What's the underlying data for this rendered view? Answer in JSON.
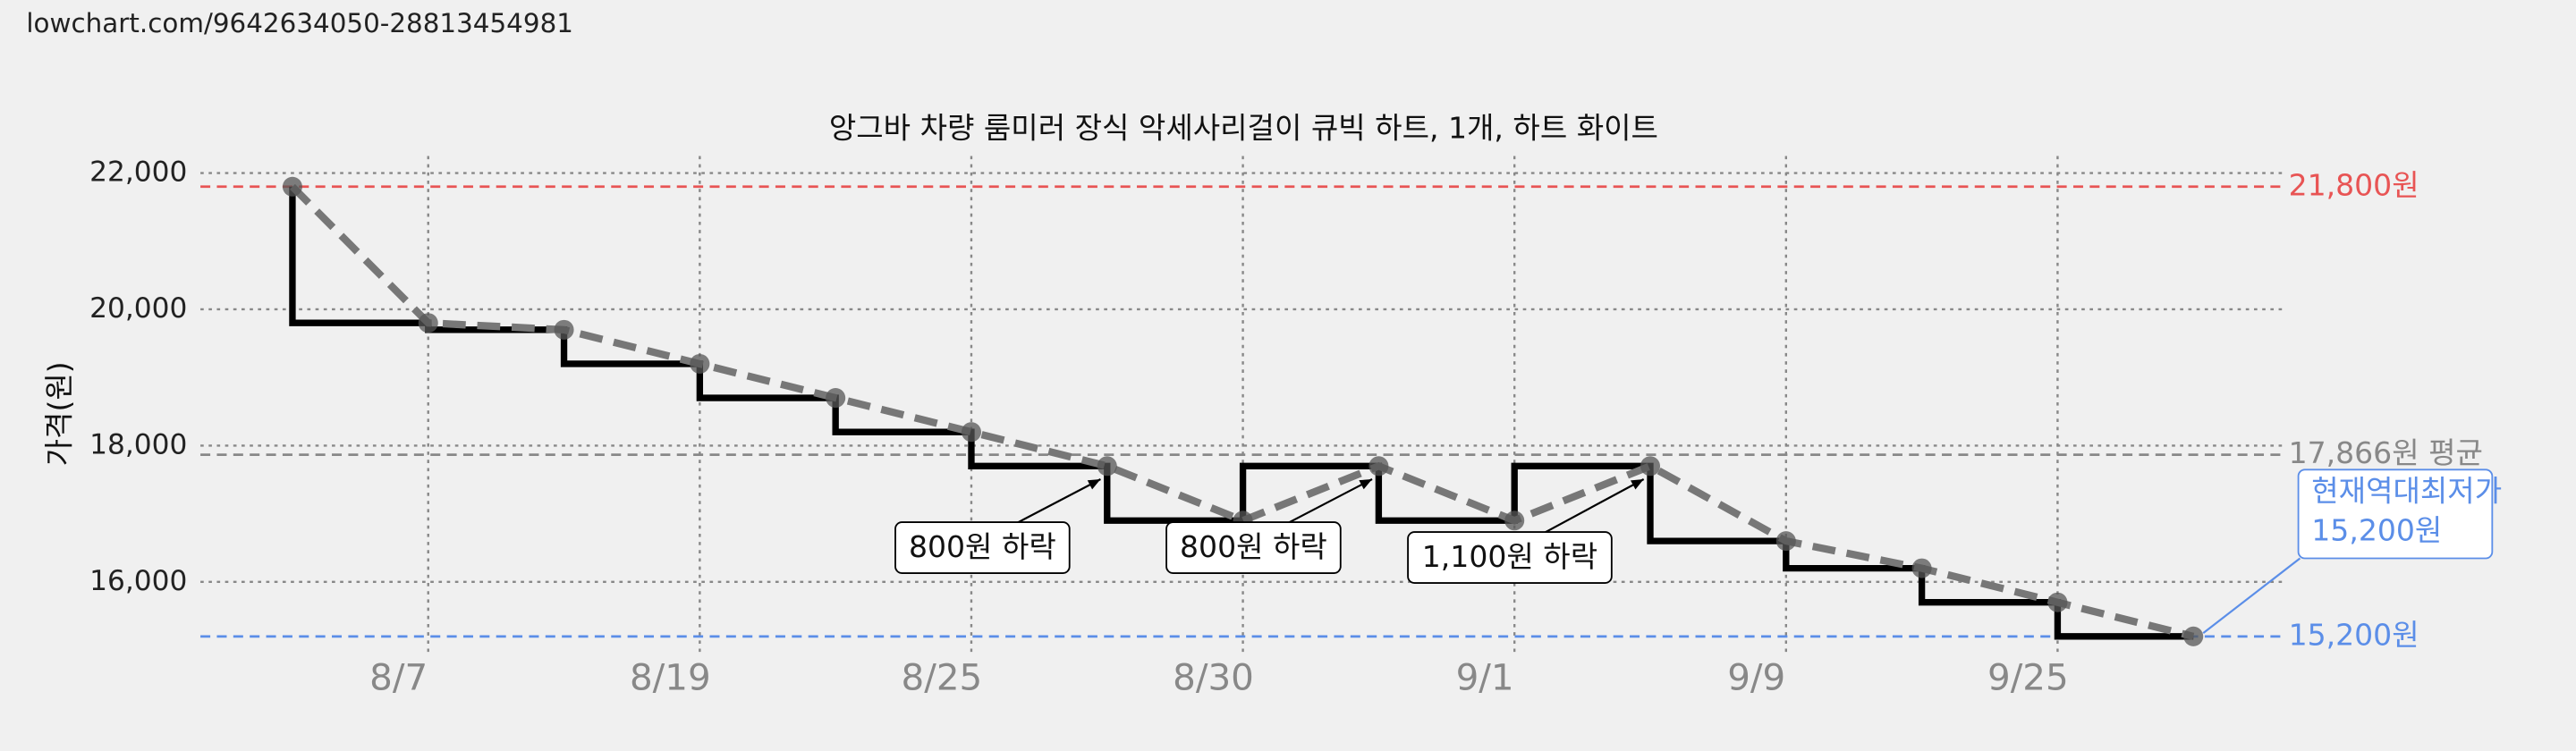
{
  "url": "lowchart.com/9642634050-28813454981",
  "chart_data": {
    "type": "line",
    "title": "앙그바 차량 룸미러 장식 악세사리걸이 큐빅 하트, 1개, 하트 화이트",
    "y_label": "가격(원)",
    "categories": [
      null,
      "8/7",
      null,
      "8/19",
      null,
      "8/25",
      null,
      "8/30",
      null,
      "9/1",
      null,
      "9/9",
      null,
      "9/25",
      null
    ],
    "values": [
      21800,
      19800,
      19700,
      19200,
      18700,
      18200,
      17700,
      16900,
      17700,
      16900,
      17700,
      16600,
      16200,
      15700,
      15200
    ],
    "color": "#777777",
    "step_color": "#000000",
    "ylim": [
      14900,
      22250
    ],
    "yticks": [
      {
        "value": 16000,
        "label": "16,000"
      },
      {
        "value": 18000,
        "label": "18,000"
      },
      {
        "value": 20000,
        "label": "20,000"
      },
      {
        "value": 22000,
        "label": "22,000"
      }
    ],
    "grid": true,
    "reference_lines": [
      {
        "value": 21800,
        "label": "21,800원",
        "color": "#e85454"
      },
      {
        "value": 17866,
        "label": "17,866원 평균",
        "color": "#888888"
      },
      {
        "value": 15200,
        "label": "15,200원",
        "color": "#5b8ee8"
      }
    ],
    "annotations": [
      "800원 하락",
      "800원 하락",
      "1,100원 하락"
    ],
    "callout": [
      "현재역대최저가",
      "15,200원"
    ]
  }
}
